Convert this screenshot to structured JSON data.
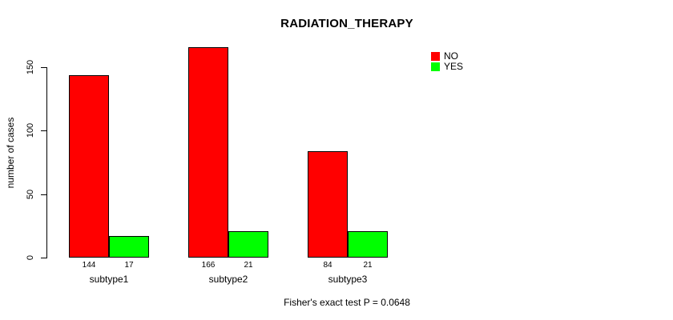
{
  "chart_data": {
    "type": "bar",
    "title": "RADIATION_THERAPY",
    "ylabel": "number of cases",
    "xlabel": "",
    "categories": [
      "subtype1",
      "subtype2",
      "subtype3"
    ],
    "series": [
      {
        "name": "NO",
        "color": "#FF0000",
        "values": [
          144,
          166,
          84
        ]
      },
      {
        "name": "YES",
        "color": "#00FF00",
        "values": [
          17,
          21,
          21
        ]
      }
    ],
    "bar_value_labels": [
      [
        144,
        17
      ],
      [
        166,
        21
      ],
      [
        84,
        21
      ]
    ],
    "yticks": [
      0,
      50,
      100,
      150
    ],
    "ylim": [
      0,
      175
    ],
    "grid": false,
    "legend_position": "top-right",
    "annotation": "Fisher's exact test P = 0.0648",
    "bar_border_color": "#000000",
    "axis_color": "#000000"
  }
}
